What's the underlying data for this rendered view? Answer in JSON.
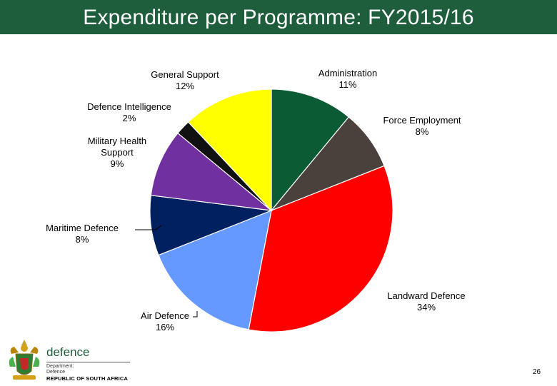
{
  "header": {
    "title": "Expenditure per Programme: FY2015/16"
  },
  "chart_data": {
    "type": "pie",
    "title": "Expenditure per Programme: FY2015/16",
    "slices": [
      {
        "name": "Administration",
        "value_label": "11%",
        "value": 11,
        "color": "#0b5b34"
      },
      {
        "name": "Force Employment",
        "value_label": "8%",
        "value": 8,
        "color": "#4a413c"
      },
      {
        "name": "Landward Defence",
        "value_label": "34%",
        "value": 34,
        "color": "#ff0000"
      },
      {
        "name": "Air Defence",
        "value_label": "16%",
        "value": 16,
        "color": "#6699ff"
      },
      {
        "name": "Maritime Defence",
        "value_label": "8%",
        "value": 8,
        "color": "#002060"
      },
      {
        "name": "Military Health Support",
        "value_label": "9%",
        "value": 9,
        "color": "#7030a0"
      },
      {
        "name": "Defence Intelligence",
        "value_label": "2%",
        "value": 2,
        "color": "#111111"
      },
      {
        "name": "General Support",
        "value_label": "12%",
        "value": 12,
        "color": "#ffff00"
      }
    ]
  },
  "label_lines": [
    [
      "General Support",
      "12%"
    ],
    [
      "Administration",
      "11%"
    ],
    [
      "Defence Intelligence",
      "2%"
    ],
    [
      "Force Employment",
      "8%"
    ],
    [
      "Military Health",
      "Support",
      "9%"
    ],
    [
      "Maritime Defence",
      "8%"
    ],
    [
      "Landward Defence",
      "34%"
    ],
    [
      "Air Defence",
      "16%"
    ]
  ],
  "footer": {
    "logo_word": "defence",
    "logo_sub_1": "Department:",
    "logo_sub_2": "Defence",
    "logo_rsa": "REPUBLIC OF SOUTH AFRICA",
    "page_number": "26"
  }
}
